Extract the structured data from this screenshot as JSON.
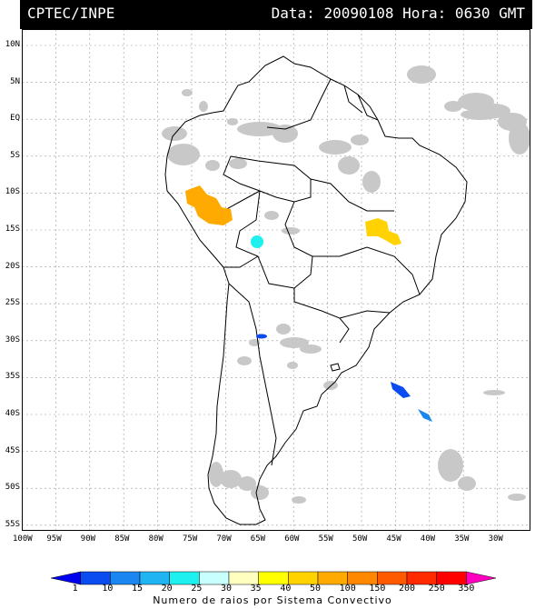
{
  "header": {
    "agency": "CPTEC/INPE",
    "timestamp": "Data: 20090108 Hora: 0630 GMT"
  },
  "map": {
    "lat_labels": [
      "10N",
      "5N",
      "EQ",
      "5S",
      "10S",
      "15S",
      "20S",
      "25S",
      "30S",
      "35S",
      "40S",
      "45S",
      "50S",
      "55S"
    ],
    "lon_labels": [
      "100W",
      "95W",
      "90W",
      "85W",
      "80W",
      "75W",
      "70W",
      "65W",
      "60W",
      "55W",
      "50W",
      "45W",
      "40W",
      "35W",
      "30W"
    ],
    "region": "South America"
  },
  "colorbar": {
    "labels": [
      "1",
      "10",
      "15",
      "20",
      "25",
      "30",
      "35",
      "40",
      "50",
      "100",
      "150",
      "200",
      "250",
      "350"
    ],
    "colors": [
      "#0000ee",
      "#0a4cf0",
      "#1b86f0",
      "#21b4f2",
      "#1ef0f0",
      "#c8ffff",
      "#ffffc0",
      "#ffff00",
      "#ffd200",
      "#ffaa00",
      "#ff8800",
      "#ff5a00",
      "#ff2a00",
      "#ff0000",
      "#ff00c0"
    ],
    "caption": "Numero de raios por Sistema Convectivo"
  }
}
